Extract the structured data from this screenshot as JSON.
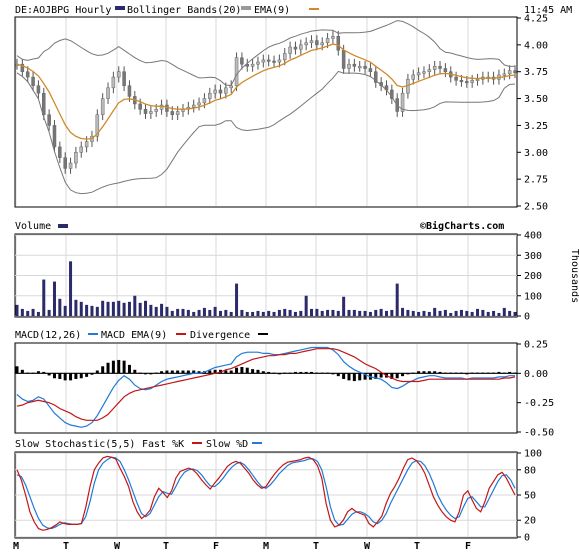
{
  "header": {
    "symbol": "DE:AOJBPG",
    "interval": "Hourly",
    "bb_label": "Bollinger Bands(20)",
    "ema_label": "EMA(9)",
    "time": "11:45 AM"
  },
  "brand": "©BigCharts.com",
  "colors": {
    "price_bar": "#888888",
    "bollinger": "#777777",
    "ema": "#d08a2a",
    "volume": "#2b2a6a",
    "macd": "#1f7ad8",
    "macd_ema": "#c41616",
    "divergence": "#000000",
    "fast_k": "#c41616",
    "slow_d": "#1f7ad8",
    "grid": "#d8d8d8"
  },
  "panels": {
    "volume": {
      "label": "Volume",
      "unit": "Thousands"
    },
    "macd": {
      "label": "MACD(12,26)",
      "ema_label": "MACD EMA(9)",
      "div_label": "Divergence"
    },
    "stoch": {
      "label": "Slow Stochastic(5,5)",
      "fast_label": "Fast %K",
      "slow_label": "Slow %D"
    }
  },
  "chart_data": [
    {
      "type": "candlestick",
      "title": "DE:AOJBPG Hourly",
      "ylim": [
        2.5,
        4.25
      ],
      "yticks": [
        "4.25",
        "4.00",
        "3.75",
        "3.50",
        "3.25",
        "3.00",
        "2.75",
        "2.50"
      ],
      "yticks_values": [
        4.25,
        4.0,
        3.75,
        3.5,
        3.25,
        3.0,
        2.75,
        2.5
      ],
      "xticks": [
        "M",
        "T",
        "W",
        "T",
        "F",
        "M",
        "T",
        "W",
        "T",
        "F"
      ],
      "close": [
        3.82,
        3.75,
        3.7,
        3.62,
        3.55,
        3.35,
        3.25,
        3.05,
        2.95,
        2.85,
        2.9,
        3.0,
        3.05,
        3.1,
        3.15,
        3.35,
        3.5,
        3.6,
        3.7,
        3.75,
        3.62,
        3.52,
        3.45,
        3.4,
        3.36,
        3.38,
        3.4,
        3.44,
        3.38,
        3.35,
        3.38,
        3.4,
        3.42,
        3.44,
        3.46,
        3.5,
        3.55,
        3.58,
        3.55,
        3.6,
        3.62,
        3.88,
        3.82,
        3.8,
        3.82,
        3.84,
        3.86,
        3.85,
        3.84,
        3.86,
        3.92,
        3.98,
        3.96,
        4.0,
        4.02,
        4.04,
        4.0,
        4.02,
        4.06,
        4.08,
        3.95,
        3.78,
        3.82,
        3.8,
        3.8,
        3.78,
        3.75,
        3.65,
        3.62,
        3.58,
        3.5,
        3.38,
        3.55,
        3.68,
        3.72,
        3.74,
        3.75,
        3.77,
        3.8,
        3.78,
        3.75,
        3.7,
        3.67,
        3.66,
        3.65,
        3.67,
        3.68,
        3.7,
        3.7,
        3.68,
        3.72,
        3.73,
        3.76,
        3.74
      ],
      "series": [
        {
          "name": "Bollinger Bands(20)"
        },
        {
          "name": "EMA(9)"
        }
      ]
    },
    {
      "type": "bar",
      "title": "Volume",
      "ylabel": "Thousands",
      "ylim": [
        0,
        400
      ],
      "yticks": [
        "400",
        "300",
        "200",
        "100",
        "0"
      ],
      "yticks_values": [
        400,
        300,
        200,
        100,
        0
      ],
      "values": [
        55,
        35,
        25,
        35,
        20,
        180,
        30,
        170,
        85,
        50,
        270,
        80,
        70,
        55,
        50,
        45,
        75,
        70,
        70,
        75,
        65,
        70,
        100,
        65,
        75,
        55,
        45,
        60,
        45,
        25,
        35,
        35,
        30,
        20,
        30,
        40,
        30,
        45,
        25,
        30,
        20,
        160,
        30,
        20,
        20,
        25,
        20,
        25,
        20,
        30,
        35,
        30,
        20,
        25,
        100,
        35,
        35,
        25,
        30,
        30,
        25,
        95,
        30,
        30,
        25,
        25,
        20,
        30,
        35,
        25,
        30,
        160,
        40,
        30,
        25,
        20,
        25,
        20,
        40,
        25,
        30,
        15,
        25,
        30,
        25,
        20,
        35,
        30,
        20,
        25,
        15,
        40,
        25,
        20
      ]
    },
    {
      "type": "line",
      "title": "MACD(12,26)",
      "ylim": [
        -0.5,
        0.25
      ],
      "yticks": [
        "0.25",
        "0.00",
        "-0.25",
        "-0.50"
      ],
      "yticks_values": [
        0.25,
        0,
        -0.25,
        -0.5
      ],
      "series": [
        {
          "name": "MACD(12,26)",
          "values": [
            -0.18,
            -0.22,
            -0.24,
            -0.23,
            -0.2,
            -0.22,
            -0.28,
            -0.34,
            -0.38,
            -0.42,
            -0.44,
            -0.45,
            -0.46,
            -0.45,
            -0.42,
            -0.36,
            -0.28,
            -0.2,
            -0.12,
            -0.06,
            -0.02,
            -0.05,
            -0.1,
            -0.13,
            -0.14,
            -0.13,
            -0.1,
            -0.07,
            -0.05,
            -0.04,
            -0.03,
            -0.02,
            -0.01,
            0.0,
            0.0,
            0.01,
            0.03,
            0.05,
            0.06,
            0.07,
            0.08,
            0.14,
            0.17,
            0.18,
            0.18,
            0.18,
            0.17,
            0.17,
            0.16,
            0.16,
            0.17,
            0.18,
            0.19,
            0.2,
            0.21,
            0.22,
            0.22,
            0.22,
            0.22,
            0.2,
            0.16,
            0.1,
            0.06,
            0.03,
            0.01,
            -0.01,
            -0.03,
            -0.04,
            -0.05,
            -0.08,
            -0.12,
            -0.13,
            -0.11,
            -0.08,
            -0.06,
            -0.04,
            -0.03,
            -0.02,
            -0.02,
            -0.03,
            -0.04,
            -0.04,
            -0.04,
            -0.04,
            -0.05,
            -0.04,
            -0.04,
            -0.04,
            -0.04,
            -0.04,
            -0.03,
            -0.03,
            -0.02,
            -0.02
          ]
        },
        {
          "name": "MACD EMA(9)",
          "values": [
            -0.28,
            -0.27,
            -0.25,
            -0.24,
            -0.23,
            -0.24,
            -0.25,
            -0.27,
            -0.3,
            -0.32,
            -0.34,
            -0.37,
            -0.39,
            -0.4,
            -0.4,
            -0.4,
            -0.38,
            -0.35,
            -0.3,
            -0.25,
            -0.2,
            -0.17,
            -0.15,
            -0.14,
            -0.13,
            -0.12,
            -0.11,
            -0.1,
            -0.09,
            -0.08,
            -0.07,
            -0.06,
            -0.05,
            -0.04,
            -0.03,
            -0.02,
            -0.01,
            0.0,
            0.01,
            0.03,
            0.04,
            0.06,
            0.08,
            0.1,
            0.12,
            0.13,
            0.14,
            0.15,
            0.15,
            0.16,
            0.16,
            0.17,
            0.17,
            0.18,
            0.19,
            0.2,
            0.21,
            0.21,
            0.21,
            0.21,
            0.2,
            0.18,
            0.16,
            0.14,
            0.11,
            0.08,
            0.06,
            0.04,
            0.01,
            -0.02,
            -0.04,
            -0.06,
            -0.07,
            -0.07,
            -0.07,
            -0.07,
            -0.06,
            -0.05,
            -0.05,
            -0.05,
            -0.05,
            -0.05,
            -0.05,
            -0.05,
            -0.05,
            -0.05,
            -0.05,
            -0.05,
            -0.05,
            -0.05,
            -0.05,
            -0.04,
            -0.04,
            -0.03
          ]
        },
        {
          "name": "Divergence"
        }
      ]
    },
    {
      "type": "line",
      "title": "Slow Stochastic(5,5)",
      "ylim": [
        0,
        100
      ],
      "yticks": [
        "100",
        "80",
        "50",
        "20",
        "0"
      ],
      "yticks_values": [
        100,
        80,
        50,
        20,
        0
      ],
      "series": [
        {
          "name": "Fast %K",
          "values": [
            80,
            68,
            50,
            30,
            18,
            10,
            8,
            9,
            11,
            14,
            18,
            16,
            15,
            15,
            15,
            16,
            35,
            60,
            80,
            88,
            94,
            96,
            95,
            93,
            82,
            72,
            60,
            42,
            30,
            22,
            26,
            32,
            48,
            58,
            53,
            47,
            55,
            70,
            78,
            80,
            82,
            80,
            75,
            68,
            62,
            57,
            64,
            70,
            77,
            84,
            88,
            90,
            88,
            82,
            76,
            68,
            62,
            58,
            60,
            68,
            75,
            81,
            86,
            89,
            90,
            91,
            92,
            94,
            95,
            92,
            85,
            70,
            40,
            20,
            12,
            14,
            20,
            30,
            34,
            30,
            28,
            26,
            16,
            12,
            18,
            25,
            40,
            52,
            60,
            70,
            82,
            92,
            94,
            91,
            85,
            76,
            62,
            48,
            38,
            30,
            24,
            20,
            18,
            30,
            50,
            55,
            44,
            34,
            30,
            42,
            58,
            66,
            74,
            77,
            70,
            60,
            50
          ]
        },
        {
          "name": "Slow %D",
          "values": [
            74,
            72,
            62,
            48,
            34,
            22,
            14,
            11,
            10,
            12,
            15,
            17,
            16,
            15,
            15,
            16,
            24,
            42,
            64,
            80,
            88,
            92,
            95,
            94,
            90,
            80,
            68,
            54,
            40,
            28,
            24,
            28,
            38,
            48,
            54,
            52,
            51,
            60,
            70,
            77,
            80,
            81,
            79,
            74,
            67,
            61,
            60,
            64,
            70,
            77,
            83,
            87,
            89,
            86,
            80,
            73,
            66,
            60,
            58,
            62,
            68,
            75,
            80,
            85,
            88,
            89,
            90,
            91,
            93,
            93,
            90,
            80,
            60,
            36,
            20,
            14,
            15,
            21,
            27,
            30,
            30,
            28,
            24,
            18,
            16,
            20,
            28,
            40,
            50,
            60,
            70,
            80,
            88,
            91,
            90,
            85,
            76,
            64,
            50,
            40,
            32,
            26,
            22,
            24,
            36,
            46,
            48,
            42,
            36,
            36,
            46,
            56,
            66,
            73,
            74,
            68,
            58
          ]
        }
      ]
    }
  ]
}
